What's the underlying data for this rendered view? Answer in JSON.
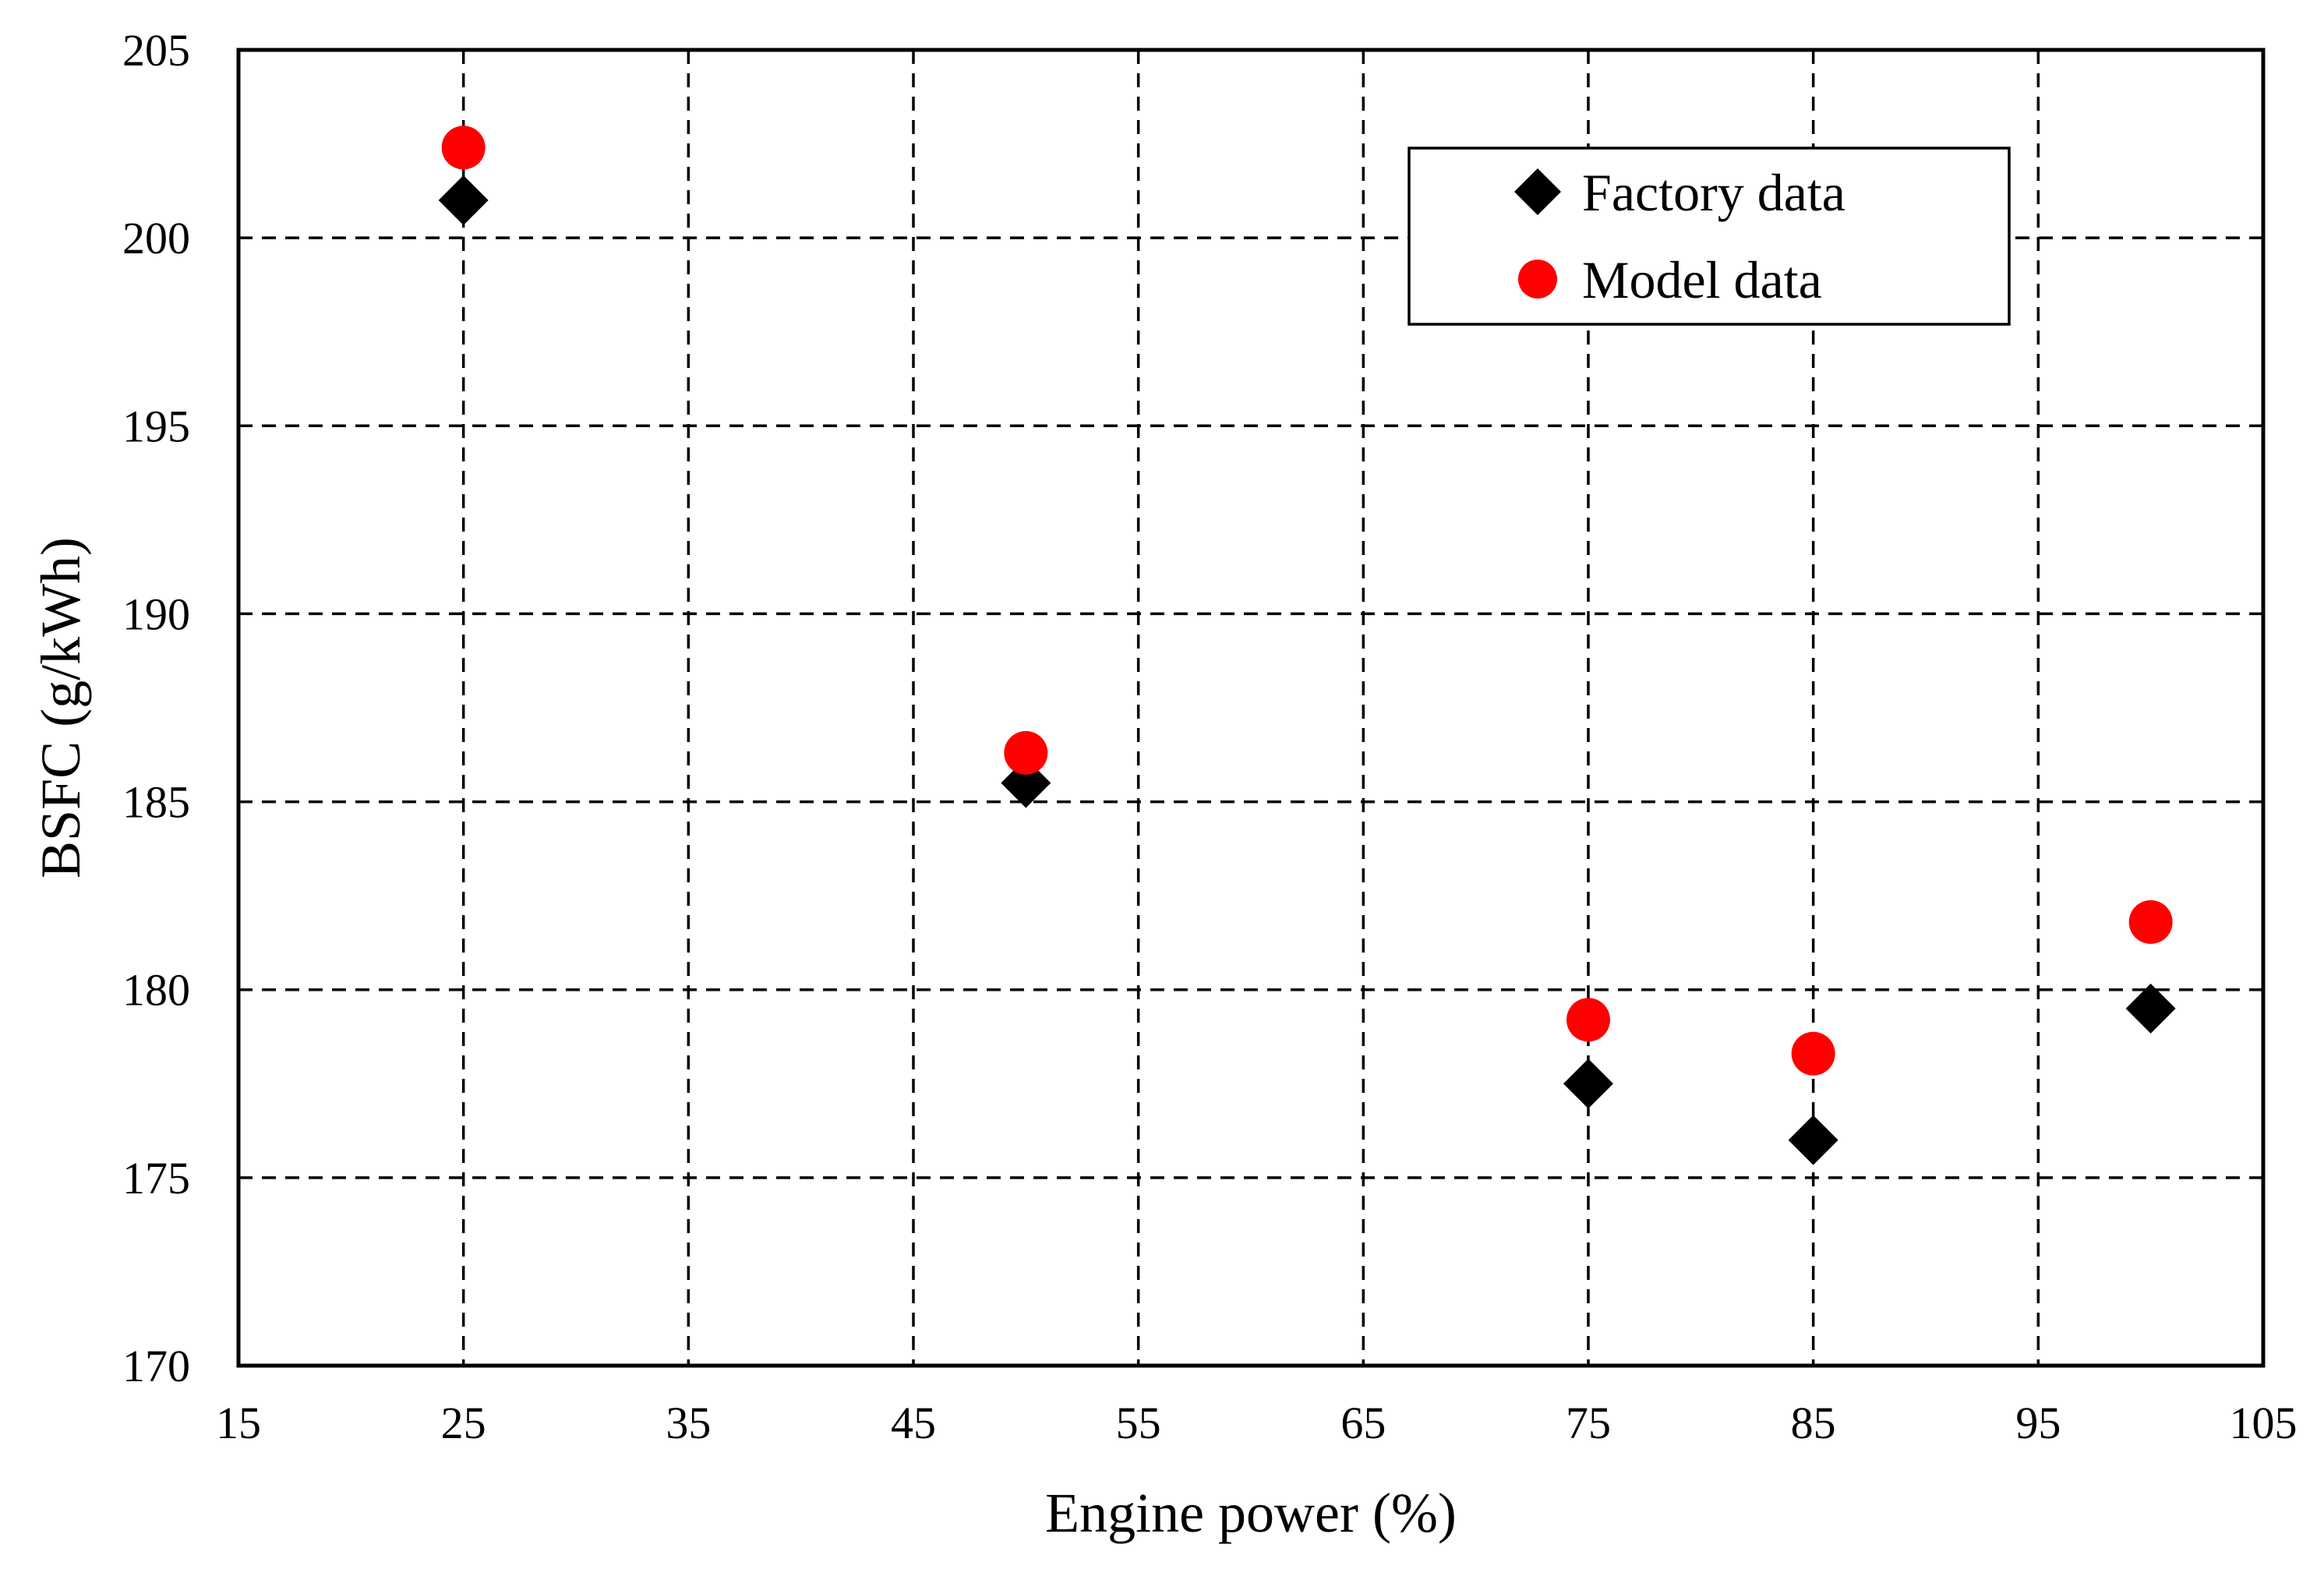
{
  "chart_data": {
    "type": "scatter",
    "title": "",
    "xlabel": "Engine power (%)",
    "ylabel": "BSFC (g/kWh)",
    "xlim": [
      15,
      105
    ],
    "ylim": [
      170,
      205
    ],
    "x_ticks": [
      15,
      25,
      35,
      45,
      55,
      65,
      75,
      85,
      95,
      105
    ],
    "y_ticks": [
      170,
      175,
      180,
      185,
      190,
      195,
      200,
      205
    ],
    "grid": true,
    "legend_position": "top-right",
    "series": [
      {
        "name": "Factory data",
        "marker": "diamond",
        "color": "#000000",
        "x": [
          25,
          50,
          75,
          85,
          100
        ],
        "y": [
          201.0,
          185.5,
          177.5,
          176.0,
          179.5
        ]
      },
      {
        "name": "Model data",
        "marker": "circle",
        "color": "#ff0000",
        "x": [
          25,
          50,
          75,
          85,
          100
        ],
        "y": [
          202.4,
          186.3,
          179.2,
          178.3,
          181.8
        ]
      }
    ]
  }
}
